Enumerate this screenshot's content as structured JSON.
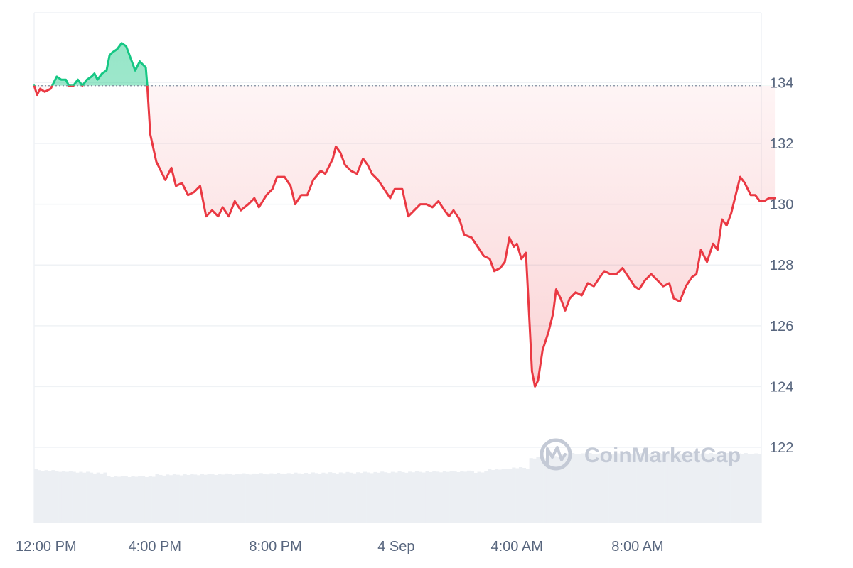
{
  "chart_data": {
    "type": "area",
    "baseline": 133.9,
    "ylim": [
      119.5,
      136.3
    ],
    "y_ticks": [
      122,
      124,
      126,
      128,
      130,
      132,
      134
    ],
    "x_ticks": [
      {
        "label": "12:00 PM",
        "t": 0
      },
      {
        "label": "4:00 PM",
        "t": 4
      },
      {
        "label": "8:00 PM",
        "t": 8
      },
      {
        "label": "4 Sep",
        "t": 12
      },
      {
        "label": "4:00 AM",
        "t": 16
      },
      {
        "label": "8:00 AM",
        "t": 20
      }
    ],
    "x_unit": "hours after 12:00 PM",
    "xlim": [
      0,
      24.1
    ],
    "grid": true,
    "colors": {
      "up": "#16c784",
      "down": "#ea3943",
      "grid": "#eff2f5",
      "volume": "#eceff3"
    },
    "price": [
      [
        0.0,
        133.9
      ],
      [
        0.1,
        133.6
      ],
      [
        0.2,
        133.8
      ],
      [
        0.35,
        133.7
      ],
      [
        0.55,
        133.8
      ],
      [
        0.75,
        134.2
      ],
      [
        0.9,
        134.1
      ],
      [
        1.05,
        134.1
      ],
      [
        1.15,
        133.9
      ],
      [
        1.3,
        133.9
      ],
      [
        1.45,
        134.1
      ],
      [
        1.6,
        133.9
      ],
      [
        1.75,
        134.1
      ],
      [
        1.9,
        134.2
      ],
      [
        2.0,
        134.3
      ],
      [
        2.1,
        134.1
      ],
      [
        2.25,
        134.3
      ],
      [
        2.4,
        134.4
      ],
      [
        2.5,
        134.9
      ],
      [
        2.6,
        135.0
      ],
      [
        2.75,
        135.1
      ],
      [
        2.9,
        135.3
      ],
      [
        3.05,
        135.2
      ],
      [
        3.2,
        134.8
      ],
      [
        3.35,
        134.4
      ],
      [
        3.5,
        134.7
      ],
      [
        3.6,
        134.6
      ],
      [
        3.7,
        134.5
      ],
      [
        3.75,
        133.9
      ],
      [
        3.85,
        132.3
      ],
      [
        4.05,
        131.4
      ],
      [
        4.35,
        130.8
      ],
      [
        4.55,
        131.2
      ],
      [
        4.7,
        130.6
      ],
      [
        4.9,
        130.7
      ],
      [
        5.1,
        130.3
      ],
      [
        5.3,
        130.4
      ],
      [
        5.5,
        130.6
      ],
      [
        5.7,
        129.6
      ],
      [
        5.9,
        129.8
      ],
      [
        6.1,
        129.6
      ],
      [
        6.25,
        129.9
      ],
      [
        6.45,
        129.6
      ],
      [
        6.65,
        130.1
      ],
      [
        6.85,
        129.8
      ],
      [
        7.1,
        130.0
      ],
      [
        7.3,
        130.2
      ],
      [
        7.45,
        129.9
      ],
      [
        7.7,
        130.3
      ],
      [
        7.9,
        130.5
      ],
      [
        8.05,
        130.9
      ],
      [
        8.3,
        130.9
      ],
      [
        8.5,
        130.6
      ],
      [
        8.65,
        130.0
      ],
      [
        8.85,
        130.3
      ],
      [
        9.05,
        130.3
      ],
      [
        9.25,
        130.8
      ],
      [
        9.5,
        131.1
      ],
      [
        9.65,
        131.0
      ],
      [
        9.9,
        131.5
      ],
      [
        10.0,
        131.9
      ],
      [
        10.15,
        131.7
      ],
      [
        10.3,
        131.3
      ],
      [
        10.5,
        131.1
      ],
      [
        10.7,
        131.0
      ],
      [
        10.9,
        131.5
      ],
      [
        11.05,
        131.3
      ],
      [
        11.2,
        131.0
      ],
      [
        11.4,
        130.8
      ],
      [
        11.6,
        130.5
      ],
      [
        11.8,
        130.2
      ],
      [
        11.95,
        130.5
      ],
      [
        12.2,
        130.5
      ],
      [
        12.4,
        129.6
      ],
      [
        12.6,
        129.8
      ],
      [
        12.8,
        130.0
      ],
      [
        13.0,
        130.0
      ],
      [
        13.2,
        129.9
      ],
      [
        13.4,
        130.1
      ],
      [
        13.6,
        129.8
      ],
      [
        13.75,
        129.6
      ],
      [
        13.9,
        129.8
      ],
      [
        14.1,
        129.5
      ],
      [
        14.25,
        129.0
      ],
      [
        14.5,
        128.9
      ],
      [
        14.7,
        128.6
      ],
      [
        14.9,
        128.3
      ],
      [
        15.1,
        128.2
      ],
      [
        15.25,
        127.8
      ],
      [
        15.45,
        127.9
      ],
      [
        15.6,
        128.1
      ],
      [
        15.75,
        128.9
      ],
      [
        15.9,
        128.6
      ],
      [
        16.0,
        128.7
      ],
      [
        16.15,
        128.2
      ],
      [
        16.3,
        128.4
      ],
      [
        16.4,
        126.5
      ],
      [
        16.5,
        124.5
      ],
      [
        16.6,
        124.0
      ],
      [
        16.7,
        124.2
      ],
      [
        16.85,
        125.2
      ],
      [
        17.05,
        125.8
      ],
      [
        17.2,
        126.4
      ],
      [
        17.3,
        127.2
      ],
      [
        17.45,
        126.9
      ],
      [
        17.6,
        126.5
      ],
      [
        17.75,
        126.9
      ],
      [
        17.95,
        127.1
      ],
      [
        18.15,
        127.0
      ],
      [
        18.35,
        127.4
      ],
      [
        18.55,
        127.3
      ],
      [
        18.75,
        127.6
      ],
      [
        18.9,
        127.8
      ],
      [
        19.1,
        127.7
      ],
      [
        19.3,
        127.7
      ],
      [
        19.5,
        127.9
      ],
      [
        19.7,
        127.6
      ],
      [
        19.9,
        127.3
      ],
      [
        20.05,
        127.2
      ],
      [
        20.25,
        127.5
      ],
      [
        20.45,
        127.7
      ],
      [
        20.65,
        127.5
      ],
      [
        20.85,
        127.3
      ],
      [
        21.05,
        127.4
      ],
      [
        21.2,
        126.9
      ],
      [
        21.4,
        126.8
      ],
      [
        21.6,
        127.3
      ],
      [
        21.8,
        127.6
      ],
      [
        21.95,
        127.7
      ],
      [
        22.1,
        128.5
      ],
      [
        22.3,
        128.1
      ],
      [
        22.5,
        128.7
      ],
      [
        22.65,
        128.5
      ],
      [
        22.8,
        129.5
      ],
      [
        22.95,
        129.3
      ],
      [
        23.1,
        129.7
      ],
      [
        23.25,
        130.3
      ],
      [
        23.4,
        130.9
      ],
      [
        23.55,
        130.7
      ],
      [
        23.75,
        130.3
      ],
      [
        23.9,
        130.3
      ],
      [
        24.05,
        130.1
      ],
      [
        24.2,
        130.1
      ],
      [
        24.35,
        130.2
      ],
      [
        24.55,
        130.2
      ]
    ]
  },
  "watermark": {
    "brand": "CoinMarketCap",
    "icon": "coinmarketcap-logo-icon"
  }
}
